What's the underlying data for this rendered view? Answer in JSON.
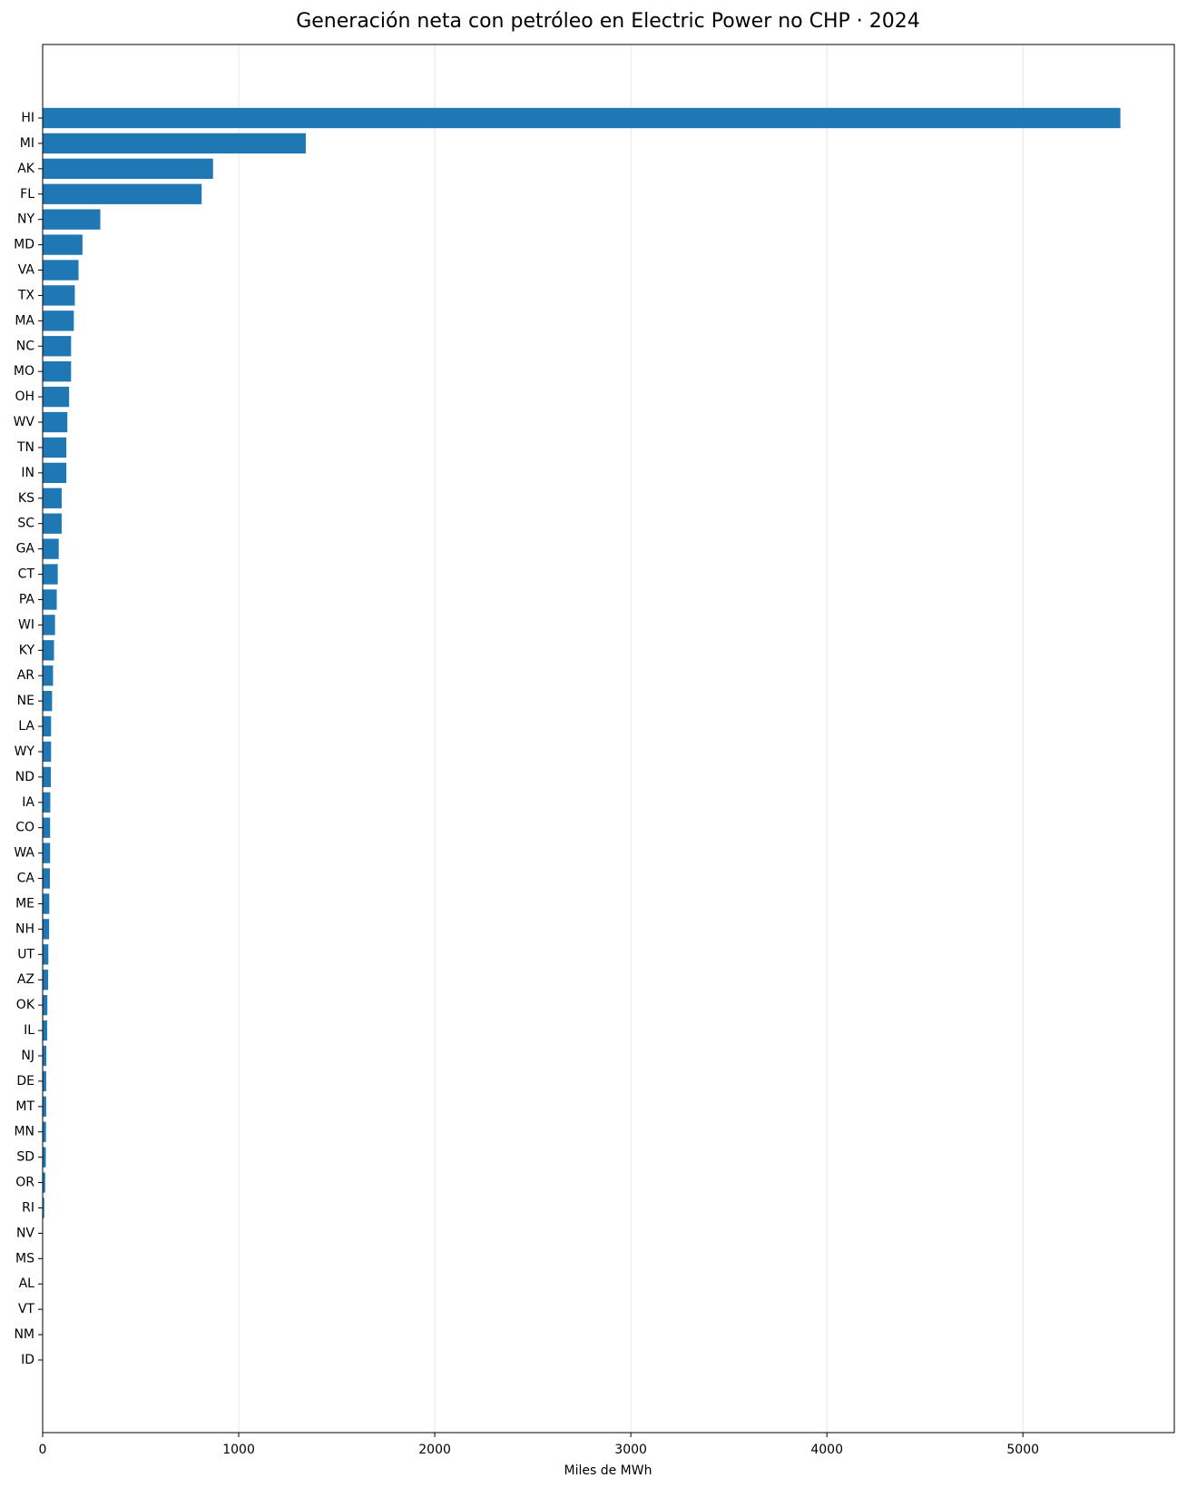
{
  "chart_data": {
    "type": "barh",
    "title": "Generación neta con petróleo en Electric Power no CHP · 2024",
    "x_label": "Miles de MWh",
    "categories": [
      "HI",
      "MI",
      "AK",
      "FL",
      "NY",
      "MD",
      "VA",
      "TX",
      "MA",
      "NC",
      "MO",
      "OH",
      "WV",
      "TN",
      "IN",
      "KS",
      "SC",
      "GA",
      "CT",
      "PA",
      "WI",
      "KY",
      "AR",
      "NE",
      "LA",
      "WY",
      "ND",
      "IA",
      "CO",
      "WA",
      "CA",
      "ME",
      "NH",
      "UT",
      "AZ",
      "OK",
      "IL",
      "NJ",
      "DE",
      "MT",
      "MN",
      "SD",
      "OR",
      "RI",
      "NV",
      "MS",
      "AL",
      "VT",
      "NM",
      "ID"
    ],
    "values": [
      5497,
      1342,
      869,
      811,
      294,
      203,
      183,
      164,
      159,
      145,
      145,
      135,
      126,
      121,
      121,
      97,
      97,
      82,
      77,
      72,
      63,
      58,
      53,
      48,
      43,
      43,
      42,
      39,
      38,
      38,
      37,
      34,
      33,
      29,
      28,
      24,
      23,
      19,
      18,
      18,
      17,
      16,
      13,
      8,
      2,
      1,
      1,
      0.5,
      0.3,
      0.2
    ],
    "color": "#1f77b4",
    "xlim": [
      0,
      5772
    ],
    "xticks": [
      0,
      1000,
      2000,
      3000,
      4000,
      5000
    ],
    "grid": true
  }
}
